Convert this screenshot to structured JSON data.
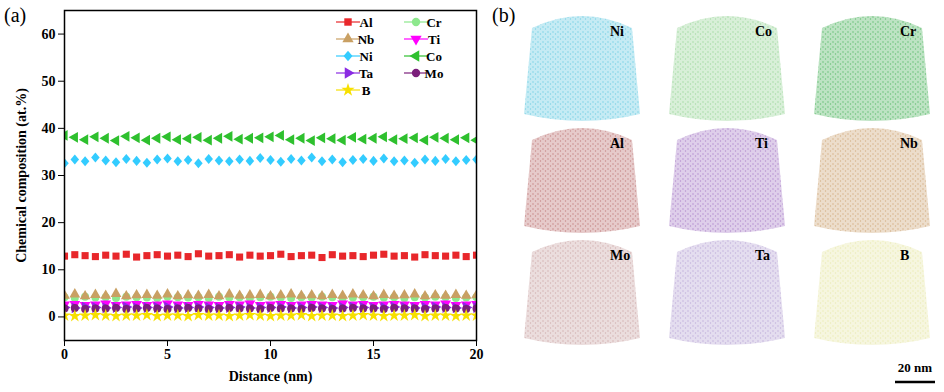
{
  "chart_data": {
    "type": "scatter",
    "title": "(a)",
    "x_label": "Distance (nm)",
    "y_label": "Chemical composition (at.%)",
    "xlim": [
      0,
      20
    ],
    "xticks": [
      0,
      5,
      10,
      15,
      20
    ],
    "ylim": [
      -5,
      65
    ],
    "yticks": [
      0,
      10,
      20,
      30,
      40,
      50,
      60
    ],
    "grid": false,
    "legend": "top-right",
    "x": [
      0,
      0.5,
      1,
      1.5,
      2,
      2.5,
      3,
      3.5,
      4,
      4.5,
      5,
      5.5,
      6,
      6.5,
      7,
      7.5,
      8,
      8.5,
      9,
      9.5,
      10,
      10.5,
      11,
      11.5,
      12,
      12.5,
      13,
      13.5,
      14,
      14.5,
      15,
      15.5,
      16,
      16.5,
      17,
      17.5,
      18,
      18.5,
      19,
      19.5,
      20
    ],
    "series": [
      {
        "name": "Al",
        "color": "#e8272b",
        "marker": "square",
        "values": [
          12.9,
          13.2,
          13.0,
          12.8,
          13.1,
          12.9,
          13.3,
          12.7,
          13.0,
          13.2,
          12.9,
          13.1,
          12.8,
          13.4,
          12.9,
          13.0,
          13.2,
          12.7,
          13.1,
          12.9,
          13.0,
          13.3,
          12.8,
          13.0,
          13.1,
          12.6,
          13.2,
          12.9,
          13.0,
          12.8,
          13.1,
          13.3,
          12.9,
          13.0,
          12.7,
          13.2,
          13.0,
          12.9,
          13.1,
          12.8,
          13.1
        ]
      },
      {
        "name": "Cr",
        "color": "#8de88d",
        "marker": "circle",
        "values": [
          4.2,
          4.0,
          4.3,
          4.1,
          4.2,
          4.0,
          4.3,
          4.2,
          4.1,
          4.0,
          4.3,
          4.2,
          4.1,
          4.2,
          4.0,
          4.3,
          4.1,
          4.2,
          4.0,
          4.2,
          4.3,
          4.1,
          4.0,
          4.2,
          4.1,
          4.3,
          4.2,
          4.0,
          4.1,
          4.2,
          4.3,
          4.1,
          4.2,
          4.0,
          4.2,
          4.1,
          4.3,
          4.2,
          4.0,
          4.1,
          4.2
        ]
      },
      {
        "name": "Nb",
        "color": "#c9a063",
        "marker": "triangle",
        "values": [
          4.5,
          4.8,
          4.4,
          4.7,
          4.5,
          4.9,
          4.4,
          4.6,
          4.7,
          4.5,
          4.8,
          4.4,
          4.6,
          4.5,
          4.7,
          4.4,
          4.8,
          4.5,
          4.6,
          4.7,
          4.4,
          4.6,
          4.8,
          4.5,
          4.6,
          4.4,
          4.7,
          4.5,
          4.8,
          4.6,
          4.4,
          4.7,
          4.5,
          4.6,
          4.8,
          4.4,
          4.6,
          4.5,
          4.7,
          4.5,
          4.6
        ]
      },
      {
        "name": "Ti",
        "color": "#ff00ff",
        "marker": "triangle-down",
        "values": [
          2.6,
          2.7,
          2.5,
          2.6,
          2.8,
          2.5,
          2.6,
          2.7,
          2.5,
          2.6,
          2.8,
          2.6,
          2.5,
          2.7,
          2.6,
          2.5,
          2.7,
          2.6,
          2.8,
          2.5,
          2.6,
          2.7,
          2.5,
          2.6,
          2.7,
          2.6,
          2.5,
          2.8,
          2.6,
          2.7,
          2.5,
          2.6,
          2.7,
          2.6,
          2.5,
          2.7,
          2.6,
          2.8,
          2.5,
          2.6,
          2.7
        ]
      },
      {
        "name": "Ni",
        "color": "#33ccff",
        "marker": "diamond",
        "values": [
          32.6,
          33.4,
          33.0,
          33.8,
          33.2,
          32.8,
          33.5,
          33.1,
          32.7,
          33.4,
          33.6,
          33.0,
          33.3,
          32.6,
          33.5,
          33.2,
          33.0,
          33.4,
          33.1,
          33.7,
          33.3,
          32.9,
          33.5,
          33.2,
          33.8,
          33.0,
          33.4,
          32.8,
          33.3,
          33.5,
          33.1,
          33.6,
          33.0,
          33.2,
          32.7,
          33.4,
          33.1,
          33.5,
          33.0,
          33.3,
          33.4
        ]
      },
      {
        "name": "Co",
        "color": "#2ec02e",
        "marker": "triangle-left",
        "values": [
          38.5,
          38.1,
          37.6,
          38.2,
          37.9,
          37.4,
          38.3,
          38.0,
          37.5,
          37.9,
          38.2,
          37.6,
          37.8,
          38.1,
          37.5,
          37.9,
          38.3,
          37.7,
          37.9,
          38.0,
          38.2,
          38.5,
          37.6,
          37.9,
          37.4,
          38.0,
          37.8,
          37.5,
          38.1,
          37.7,
          37.9,
          38.2,
          37.6,
          37.8,
          38.0,
          37.5,
          38.1,
          37.9,
          37.6,
          38.0,
          37.5
        ]
      },
      {
        "name": "Ta",
        "color": "#8a2be2",
        "marker": "triangle-right",
        "values": [
          2.0,
          1.9,
          2.1,
          2.0,
          1.9,
          2.0,
          2.1,
          1.9,
          2.0,
          2.0,
          2.1,
          1.9,
          2.0,
          2.1,
          2.0,
          1.9,
          2.0,
          2.1,
          1.9,
          2.0,
          2.0,
          2.1,
          1.9,
          2.0,
          2.1,
          2.0,
          1.9,
          2.0,
          2.1,
          2.0,
          1.9,
          2.0,
          2.1,
          2.0,
          1.9,
          2.0,
          2.1,
          2.0,
          1.9,
          2.0,
          2.0
        ]
      },
      {
        "name": "Mo",
        "color": "#7b1f7b",
        "marker": "circle",
        "values": [
          1.8,
          1.9,
          1.7,
          1.8,
          1.8,
          1.9,
          1.7,
          1.8,
          1.9,
          1.8,
          1.7,
          1.8,
          1.9,
          1.8,
          1.7,
          1.8,
          1.9,
          1.8,
          1.8,
          1.7,
          1.9,
          1.8,
          1.8,
          1.7,
          1.9,
          1.8,
          1.7,
          1.8,
          1.9,
          1.8,
          1.8,
          1.7,
          1.9,
          1.8,
          1.8,
          1.7,
          1.8,
          1.9,
          1.8,
          1.7,
          1.8
        ]
      },
      {
        "name": "B",
        "color": "#f7e000",
        "marker": "star",
        "values": [
          0.3,
          0.2,
          0.3,
          0.4,
          0.3,
          0.2,
          0.3,
          0.3,
          0.4,
          0.2,
          0.3,
          0.3,
          0.2,
          0.4,
          0.3,
          0.3,
          0.2,
          0.3,
          0.4,
          0.3,
          0.2,
          0.3,
          0.3,
          0.4,
          0.2,
          0.3,
          0.3,
          0.2,
          0.3,
          0.4,
          0.3,
          0.2,
          0.3,
          0.3,
          0.4,
          0.2,
          0.3,
          0.3,
          0.2,
          0.3,
          0.3
        ]
      }
    ]
  },
  "atom_maps": {
    "title": "(b)",
    "scale_bar": "20 nm",
    "maps": [
      {
        "element": "Ni",
        "color": "#7fd3e6"
      },
      {
        "element": "Co",
        "color": "#a8dca8"
      },
      {
        "element": "Cr",
        "color": "#6cc27a"
      },
      {
        "element": "Al",
        "color": "#c88a8a"
      },
      {
        "element": "Ti",
        "color": "#b792d0"
      },
      {
        "element": "Nb",
        "color": "#d6b48c"
      },
      {
        "element": "Mo",
        "color": "#d4b4b4"
      },
      {
        "element": "Ta",
        "color": "#c4b4dc"
      },
      {
        "element": "B",
        "color": "#ecebb8"
      }
    ]
  }
}
